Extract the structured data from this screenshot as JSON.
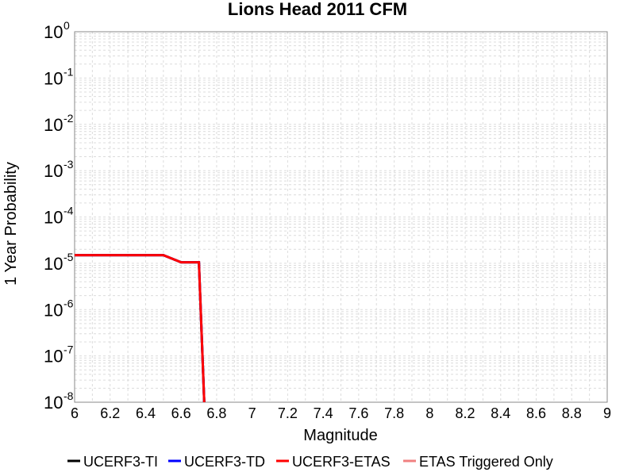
{
  "chart_data": {
    "type": "line",
    "title": "Lions Head 2011 CFM",
    "xlabel": "Magnitude",
    "ylabel": "1 Year Probability",
    "xlim": [
      6,
      9
    ],
    "ylim_exponent": [
      -8,
      0
    ],
    "y_scale": "log",
    "grid": true,
    "x_ticks": [
      "6",
      "6.2",
      "6.4",
      "6.6",
      "6.8",
      "7",
      "7.2",
      "7.4",
      "7.6",
      "7.8",
      "8",
      "8.2",
      "8.4",
      "8.6",
      "8.8",
      "9"
    ],
    "y_tick_exponents": [
      "0",
      "-1",
      "-2",
      "-3",
      "-4",
      "-5",
      "-6",
      "-7",
      "-8"
    ],
    "y_tick_base": "10",
    "legend_position": "bottom",
    "series": [
      {
        "name": "UCERF3-TI",
        "color": "#000000",
        "x": [
          6.0,
          6.5,
          6.6,
          6.7,
          6.73
        ],
        "y": [
          1.5e-05,
          1.5e-05,
          1.05e-05,
          1.05e-05,
          1e-08
        ]
      },
      {
        "name": "UCERF3-TD",
        "color": "#0000ff",
        "x": [
          6.0,
          6.5,
          6.6,
          6.7,
          6.73
        ],
        "y": [
          1.5e-05,
          1.5e-05,
          1.05e-05,
          1.05e-05,
          1e-08
        ]
      },
      {
        "name": "UCERF3-ETAS",
        "color": "#ff0000",
        "x": [
          6.0,
          6.5,
          6.6,
          6.7,
          6.73
        ],
        "y": [
          1.5e-05,
          1.5e-05,
          1.05e-05,
          1.05e-05,
          1e-08
        ]
      },
      {
        "name": "ETAS Triggered Only",
        "color": "#f08080",
        "x": [],
        "y": []
      }
    ]
  }
}
